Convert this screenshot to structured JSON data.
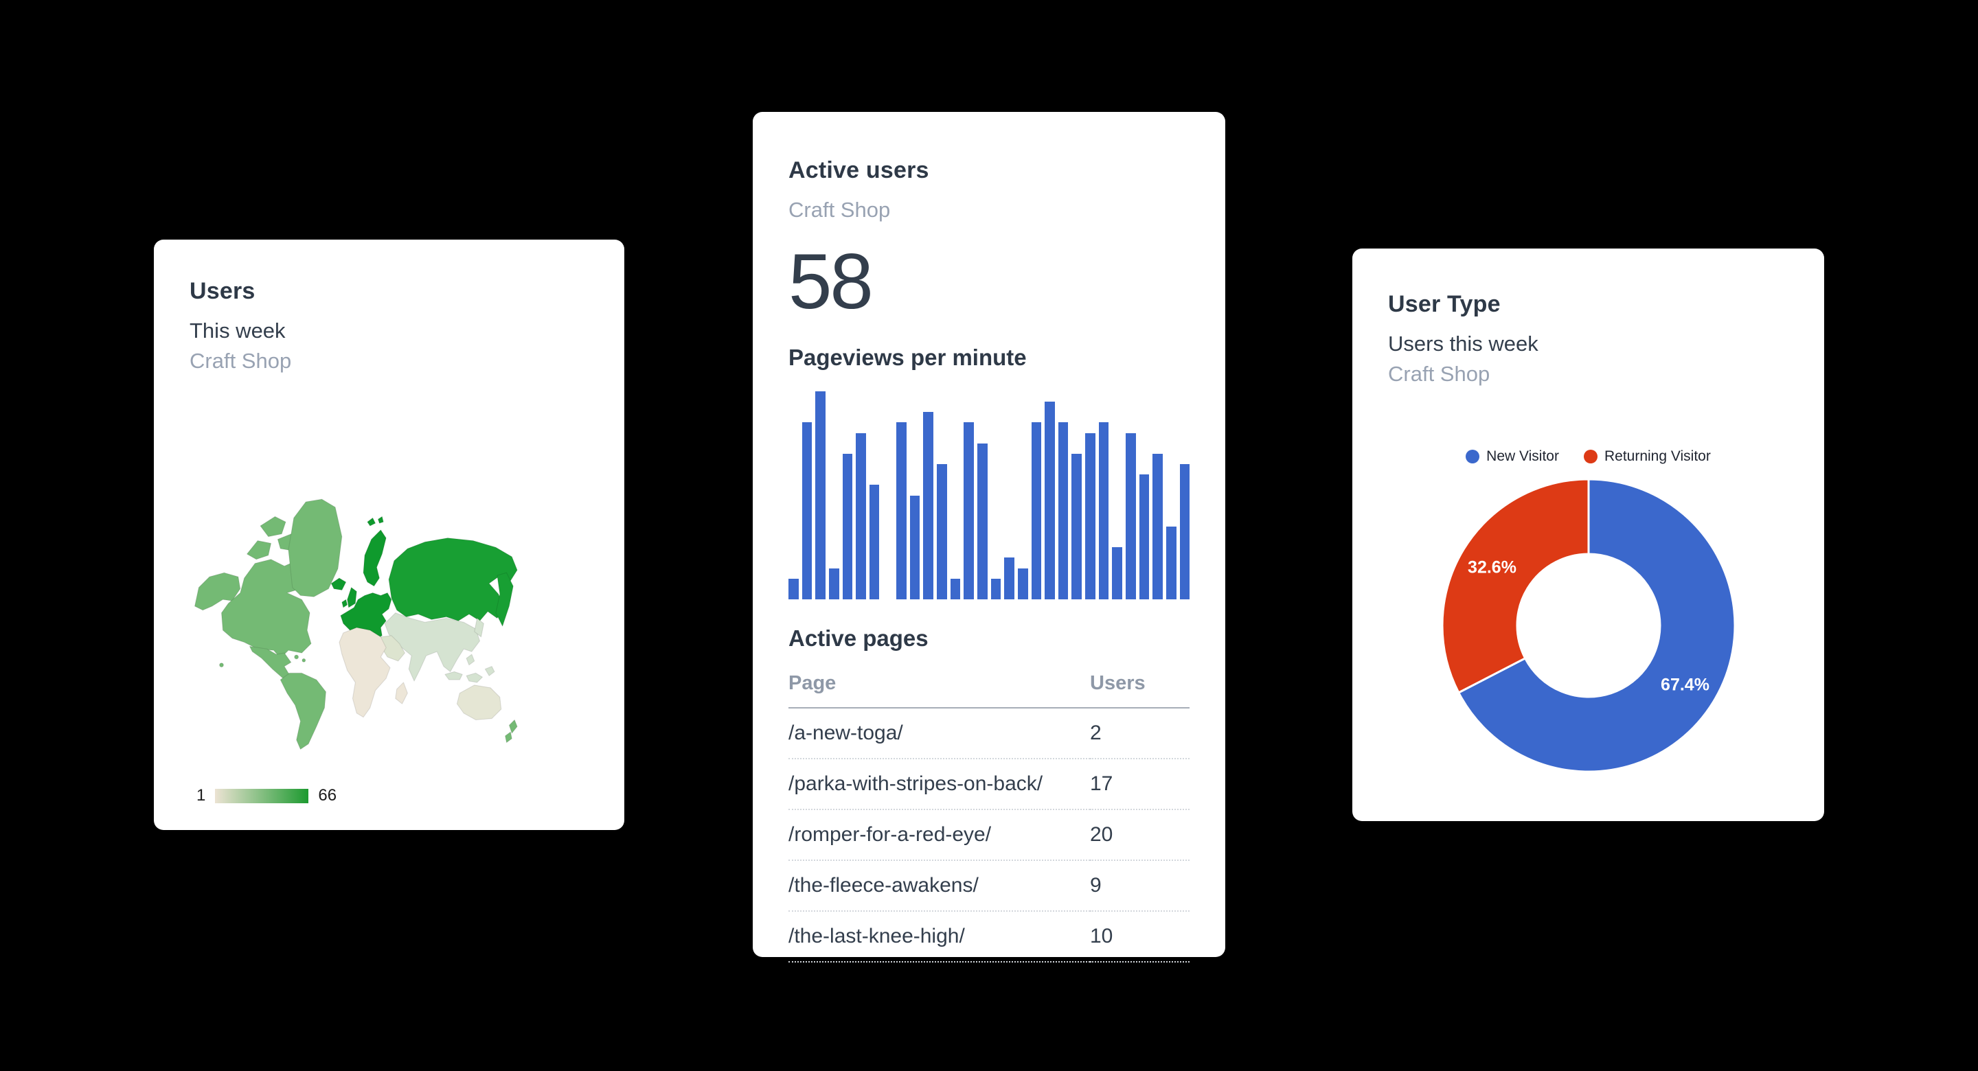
{
  "page": {
    "background": "#000000"
  },
  "users_map": {
    "title": "Users",
    "subtitle": "This week",
    "account": "Craft Shop",
    "legend": {
      "min": "1",
      "max": "66"
    },
    "palette": {
      "americas": "#74ba74",
      "europe": "#0f9a2d",
      "russia": "#189f33",
      "asia": "#d5e3d1",
      "middle_east": "#dde4cf",
      "africa": "#ede6d8",
      "australia": "#e5e6d4",
      "scale_low": "#ece3d3",
      "scale_high": "#1d9a30"
    }
  },
  "active_users": {
    "title": "Active users",
    "account": "Craft Shop",
    "count": "58",
    "pageviews": {
      "heading": "Pageviews per minute",
      "values": [
        2,
        17,
        20,
        3,
        14,
        16,
        11,
        0,
        17,
        10,
        18,
        13,
        2,
        17,
        15,
        2,
        4,
        3,
        17,
        19,
        17,
        14,
        16,
        17,
        5,
        16,
        12,
        14,
        7,
        13
      ],
      "max": 20,
      "bar_color": "#3b68cc"
    },
    "active_pages": {
      "heading": "Active pages",
      "columns": [
        "Page",
        "Users"
      ],
      "rows": [
        [
          "/a-new-toga/",
          "2"
        ],
        [
          "/parka-with-stripes-on-back/",
          "17"
        ],
        [
          "/romper-for-a-red-eye/",
          "20"
        ],
        [
          "/the-fleece-awakens/",
          "9"
        ],
        [
          "/the-last-knee-high/",
          "10"
        ]
      ]
    }
  },
  "user_type": {
    "title": "User Type",
    "subtitle": "Users this week",
    "account": "Craft Shop",
    "legend": [
      {
        "label": "New Visitor",
        "color": "#3b68cc"
      },
      {
        "label": "Returning Visitor",
        "color": "#dd3a15"
      }
    ],
    "slices": [
      {
        "label": "New Visitor",
        "value": 67.4,
        "display": "67.4%",
        "color": "#3b68cc"
      },
      {
        "label": "Returning Visitor",
        "value": 32.6,
        "display": "32.6%",
        "color": "#dd3a15"
      }
    ],
    "inner_radius_ratio": 0.49
  },
  "chart_data": [
    {
      "type": "heatmap",
      "subtype": "world-choropleth",
      "title": "Users",
      "subtitle": "This week",
      "source": "Craft Shop",
      "color_scale": {
        "min": 1,
        "max": 66,
        "min_color": "#ece3d3",
        "max_color": "#1d9a30"
      },
      "shading_by_region": {
        "europe": "high",
        "russia": "high",
        "iceland": "high",
        "scandinavia": "high",
        "north_america": "medium",
        "greenland": "medium",
        "south_america": "medium",
        "new_zealand": "medium",
        "central_asia": "low",
        "china_india_se_asia": "low",
        "middle_east": "low",
        "japan": "low",
        "australia": "low",
        "africa": "none"
      }
    },
    {
      "type": "bar",
      "title": "Pageviews per minute",
      "values": [
        2,
        17,
        20,
        3,
        14,
        16,
        11,
        0,
        17,
        10,
        18,
        13,
        2,
        17,
        15,
        2,
        4,
        3,
        17,
        19,
        17,
        14,
        16,
        17,
        5,
        16,
        12,
        14,
        7,
        13
      ],
      "ylim": [
        0,
        20
      ],
      "color": "#3b68cc",
      "axes_hidden": true,
      "grid": false
    },
    {
      "type": "pie",
      "donut": true,
      "title": "User Type",
      "labels": [
        "New Visitor",
        "Returning Visitor"
      ],
      "values": [
        67.4,
        32.6
      ],
      "colors": [
        "#3b68cc",
        "#dd3a15"
      ],
      "data_labels": [
        "67.4%",
        "32.6%"
      ],
      "legend_position": "top"
    },
    {
      "type": "table",
      "title": "Active pages",
      "columns": [
        "Page",
        "Users"
      ],
      "rows": [
        [
          "/a-new-toga/",
          2
        ],
        [
          "/parka-with-stripes-on-back/",
          17
        ],
        [
          "/romper-for-a-red-eye/",
          20
        ],
        [
          "/the-fleece-awakens/",
          9
        ],
        [
          "/the-last-knee-high/",
          10
        ]
      ]
    }
  ]
}
